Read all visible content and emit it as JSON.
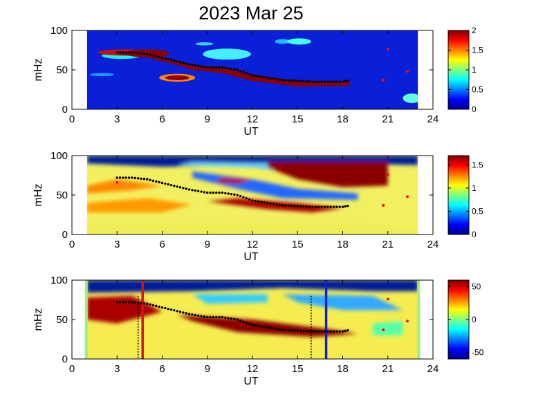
{
  "title": "2023 Mar 25",
  "chart_data": [
    {
      "type": "heatmap",
      "xlabel": "UT",
      "ylabel": "mHz",
      "xlim": [
        0,
        24
      ],
      "ylim": [
        0,
        100
      ],
      "xticks": [
        "0",
        "3",
        "6",
        "9",
        "12",
        "15",
        "18",
        "21",
        "24"
      ],
      "yticks": [
        "0",
        "50",
        "100"
      ],
      "colorbar": {
        "range": [
          0,
          2
        ],
        "ticks": [
          "0",
          "0.5",
          "1",
          "1.5",
          "2"
        ]
      },
      "data_window": [
        1,
        23
      ],
      "tracked_frequency": [
        [
          3,
          72
        ],
        [
          4,
          72
        ],
        [
          5,
          70
        ],
        [
          7.8,
          57
        ],
        [
          9,
          53
        ],
        [
          10,
          53
        ],
        [
          11,
          50
        ],
        [
          12,
          43
        ],
        [
          13,
          40
        ],
        [
          14,
          37
        ],
        [
          15,
          36
        ],
        [
          16,
          35
        ],
        [
          17,
          35
        ],
        [
          18,
          35
        ],
        [
          18.5,
          37
        ]
      ],
      "isolated_points": [
        [
          21,
          76
        ],
        [
          22.3,
          48
        ],
        [
          20.7,
          37
        ]
      ],
      "reference_lines": []
    },
    {
      "type": "heatmap",
      "xlabel": "UT",
      "ylabel": "mHz",
      "xlim": [
        0,
        24
      ],
      "ylim": [
        0,
        100
      ],
      "xticks": [
        "0",
        "3",
        "6",
        "9",
        "12",
        "15",
        "18",
        "21",
        "24"
      ],
      "yticks": [
        "0",
        "50",
        "100"
      ],
      "colorbar": {
        "range": [
          0,
          1.7
        ],
        "ticks": [
          "0",
          "0.5",
          "1",
          "1.5"
        ]
      },
      "data_window": [
        1,
        23
      ],
      "tracked_frequency": [
        [
          3,
          72
        ],
        [
          4,
          72
        ],
        [
          5,
          70
        ],
        [
          7.8,
          57
        ],
        [
          9,
          53
        ],
        [
          10,
          53
        ],
        [
          11,
          50
        ],
        [
          12,
          43
        ],
        [
          13,
          40
        ],
        [
          14,
          37
        ],
        [
          15,
          36
        ],
        [
          16,
          35
        ],
        [
          17,
          35
        ],
        [
          18,
          35
        ],
        [
          18.5,
          37
        ]
      ],
      "isolated_points": [
        [
          21,
          76
        ],
        [
          22.3,
          48
        ],
        [
          20.7,
          37
        ],
        [
          3,
          66
        ]
      ],
      "reference_lines": []
    },
    {
      "type": "heatmap",
      "xlabel": "UT",
      "ylabel": "mHz",
      "xlim": [
        0,
        24
      ],
      "ylim": [
        0,
        100
      ],
      "xticks": [
        "0",
        "3",
        "6",
        "9",
        "12",
        "15",
        "18",
        "21",
        "24"
      ],
      "yticks": [
        "0",
        "50",
        "100"
      ],
      "colorbar": {
        "range": [
          -60,
          60
        ],
        "ticks": [
          "-50",
          "0",
          "50"
        ]
      },
      "data_window": [
        1,
        23
      ],
      "tracked_frequency": [
        [
          3,
          72
        ],
        [
          4,
          72
        ],
        [
          5,
          70
        ],
        [
          7.8,
          57
        ],
        [
          9,
          53
        ],
        [
          10,
          53
        ],
        [
          11,
          50
        ],
        [
          12,
          43
        ],
        [
          13,
          40
        ],
        [
          14,
          37
        ],
        [
          15,
          36
        ],
        [
          16,
          35
        ],
        [
          17,
          35
        ],
        [
          18,
          35
        ],
        [
          18.5,
          37
        ]
      ],
      "isolated_points": [
        [
          21,
          76
        ],
        [
          22.3,
          48
        ],
        [
          20.7,
          37
        ]
      ],
      "reference_lines": [
        {
          "x": 4.7,
          "color": "#dd1111",
          "style": "solid"
        },
        {
          "x": 16.9,
          "color": "#1122cc",
          "style": "solid"
        },
        {
          "x": 4.4,
          "color": "#000000",
          "style": "dotted"
        },
        {
          "x": 15.9,
          "color": "#000000",
          "style": "dotted"
        }
      ]
    }
  ]
}
